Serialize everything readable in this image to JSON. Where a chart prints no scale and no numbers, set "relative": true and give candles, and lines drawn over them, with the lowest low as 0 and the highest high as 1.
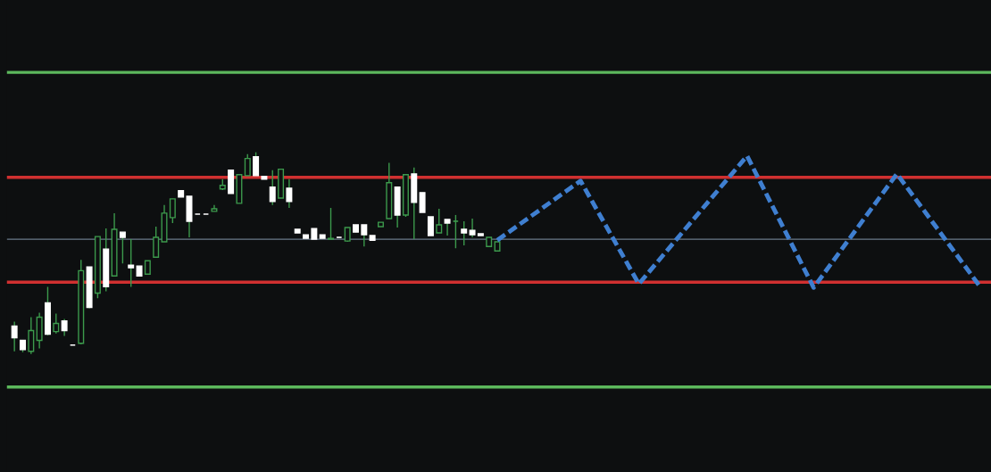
{
  "chart_data": {
    "type": "candlestick",
    "relative": true,
    "color": "#3c9a4c",
    "colors": [
      "#ffffff",
      "#ffffff",
      "#3c9a4c",
      "#3c9a4c",
      "#ffffff",
      "#3c9a4c",
      "#ffffff",
      "#ffffff",
      "#3c9a4c",
      "#ffffff",
      "#3c9a4c",
      "#ffffff",
      "#3c9a4c",
      "#ffffff",
      "#ffffff",
      "#ffffff",
      "#3c9a4c",
      "#3c9a4c",
      "#3c9a4c",
      "#3c9a4c",
      "#ffffff",
      "#ffffff",
      "#ffffff",
      "#ffffff",
      "#3c9a4c",
      "#3c9a4c",
      "#ffffff",
      "#3c9a4c",
      "#3c9a4c",
      "#ffffff",
      "#ffffff",
      "#ffffff",
      "#3c9a4c",
      "#ffffff",
      "#ffffff",
      "#ffffff",
      "#ffffff",
      "#ffffff",
      "#3c9a4c",
      "#ffffff",
      "#3c9a4c",
      "#ffffff",
      "#ffffff",
      "#ffffff",
      "#3c9a4c",
      "#3c9a4c",
      "#ffffff",
      "#3c9a4c",
      "#ffffff",
      "#ffffff",
      "#ffffff",
      "#3c9a4c",
      "#ffffff",
      "#3c9a4c",
      "#ffffff",
      "#ffffff",
      "#ffffff",
      "#3c9a4c",
      "#3c9a4c",
      null,
      null,
      null,
      null,
      null,
      null,
      null,
      null,
      null,
      null,
      null,
      null,
      null,
      null,
      null,
      null,
      null,
      null,
      null,
      null,
      null,
      null,
      null,
      null,
      null,
      null,
      null,
      null,
      null,
      null,
      null,
      null,
      null,
      null,
      null,
      null,
      null,
      null,
      null,
      null,
      null,
      null,
      null,
      null,
      null,
      null,
      null,
      null,
      null,
      null,
      null,
      null,
      null,
      null,
      null,
      null,
      null,
      null,
      null
    ],
    "categories": [
      null,
      null,
      null,
      null,
      null,
      null,
      null,
      null,
      null,
      null,
      null,
      null,
      null,
      null,
      null,
      null,
      null,
      null,
      null,
      null,
      null,
      null,
      null,
      null,
      null,
      null,
      null,
      null,
      null,
      null,
      null,
      null,
      null,
      null,
      null,
      null,
      null,
      null,
      null,
      null,
      null,
      null,
      null,
      null,
      null,
      null,
      null,
      null,
      null,
      null,
      null,
      null,
      null,
      null,
      null,
      null,
      null,
      null,
      null,
      null,
      null,
      null,
      null,
      null,
      null,
      null,
      null,
      null,
      null,
      null,
      null,
      null,
      null,
      null,
      null,
      null,
      null,
      null,
      null,
      null,
      null,
      null,
      null,
      null,
      null,
      null,
      null,
      null,
      null,
      null,
      null,
      null,
      null,
      null,
      null,
      null,
      null,
      null,
      null,
      null,
      null,
      null,
      null,
      null,
      null,
      null,
      null,
      null,
      null,
      null,
      null,
      null,
      null,
      null,
      null,
      null,
      null,
      null
    ],
    "ohlc": [
      [
        0.138,
        0.16,
        0.013,
        0.08
      ],
      [
        0.067,
        0.067,
        0.009,
        0.022
      ],
      [
        0.013,
        0.182,
        0.0,
        0.116
      ],
      [
        0.067,
        0.204,
        0.027,
        0.182
      ],
      [
        0.253,
        0.333,
        0.093,
        0.098
      ],
      [
        0.111,
        0.2,
        0.102,
        0.151
      ],
      [
        0.164,
        0.173,
        0.089,
        0.116
      ],
      [
        0.044,
        0.044,
        0.044,
        0.044
      ],
      [
        0.053,
        0.467,
        0.049,
        0.413
      ],
      [
        0.431,
        0.431,
        0.227,
        0.231
      ],
      [
        0.302,
        0.582,
        0.276,
        0.582
      ],
      [
        0.52,
        0.622,
        0.311,
        0.333
      ],
      [
        0.387,
        0.698,
        0.387,
        0.618
      ],
      [
        0.604,
        0.604,
        0.449,
        0.578
      ],
      [
        0.44,
        0.569,
        0.333,
        0.427
      ],
      [
        0.436,
        0.436,
        0.387,
        0.387
      ],
      [
        0.396,
        0.462,
        0.396,
        0.462
      ],
      [
        0.48,
        0.631,
        0.48,
        0.578
      ],
      [
        0.556,
        0.738,
        0.556,
        0.698
      ],
      [
        0.676,
        0.769,
        0.649,
        0.769
      ],
      [
        0.809,
        0.809,
        0.778,
        0.778
      ],
      [
        0.782,
        0.782,
        0.578,
        0.658
      ],
      [
        0.693,
        0.693,
        0.693,
        0.693
      ],
      [
        0.693,
        0.693,
        0.693,
        0.693
      ],
      [
        0.707,
        0.738,
        0.707,
        0.72
      ],
      [
        0.818,
        0.867,
        0.813,
        0.836
      ],
      [
        0.911,
        0.911,
        0.796,
        0.796
      ],
      [
        0.747,
        0.889,
        0.747,
        0.889
      ],
      [
        0.884,
        0.991,
        0.884,
        0.969
      ],
      [
        0.978,
        1.0,
        0.884,
        0.884
      ],
      [
        0.88,
        0.88,
        0.867,
        0.867
      ],
      [
        0.827,
        0.911,
        0.738,
        0.756
      ],
      [
        0.773,
        0.916,
        0.773,
        0.916
      ],
      [
        0.822,
        0.867,
        0.724,
        0.756
      ],
      [
        0.618,
        0.618,
        0.6,
        0.6
      ],
      [
        0.591,
        0.591,
        0.573,
        0.573
      ],
      [
        0.622,
        0.622,
        0.569,
        0.569
      ],
      [
        0.591,
        0.591,
        0.573,
        0.573
      ],
      [
        0.569,
        0.724,
        0.569,
        0.573
      ],
      [
        0.578,
        0.578,
        0.578,
        0.578
      ],
      [
        0.56,
        0.627,
        0.556,
        0.627
      ],
      [
        0.64,
        0.64,
        0.604,
        0.604
      ],
      [
        0.64,
        0.64,
        0.533,
        0.591
      ],
      [
        0.587,
        0.587,
        0.564,
        0.564
      ],
      [
        0.631,
        0.653,
        0.631,
        0.653
      ],
      [
        0.671,
        0.947,
        0.671,
        0.849
      ],
      [
        0.827,
        0.827,
        0.627,
        0.689
      ],
      [
        0.689,
        0.889,
        0.68,
        0.889
      ],
      [
        0.893,
        0.924,
        0.569,
        0.751
      ],
      [
        0.8,
        0.8,
        0.702,
        0.702
      ],
      [
        0.68,
        0.68,
        0.587,
        0.587
      ],
      [
        0.6,
        0.72,
        0.6,
        0.64
      ],
      [
        0.667,
        0.667,
        0.587,
        0.649
      ],
      [
        0.658,
        0.689,
        0.524,
        0.658
      ],
      [
        0.618,
        0.658,
        0.538,
        0.6
      ],
      [
        0.613,
        0.671,
        0.578,
        0.591
      ],
      [
        0.596,
        0.596,
        0.587,
        0.587
      ],
      [
        0.533,
        0.578,
        0.533,
        0.578
      ],
      [
        0.511,
        0.556,
        0.511,
        0.556
      ],
      null,
      null,
      null,
      null,
      null,
      null,
      null,
      null,
      null,
      null,
      null,
      null,
      null,
      null,
      null,
      null,
      null,
      null,
      null,
      null,
      null,
      null,
      null,
      null,
      null,
      null,
      null,
      null,
      null,
      null,
      null,
      null,
      null,
      null,
      null,
      null,
      null,
      null,
      null,
      null,
      null,
      null,
      null,
      null,
      null,
      null,
      null,
      null,
      null,
      null,
      null,
      null,
      null,
      null,
      null,
      null,
      null,
      null,
      null
    ],
    "series": [
      {
        "type": "line",
        "color": "#3f7fd0",
        "line_style": "dashed",
        "marker": "none",
        "values": [
          null,
          null,
          null,
          null,
          null,
          null,
          null,
          null,
          null,
          null,
          null,
          null,
          null,
          null,
          null,
          null,
          null,
          null,
          null,
          null,
          null,
          null,
          null,
          null,
          null,
          null,
          null,
          null,
          null,
          null,
          null,
          null,
          null,
          null,
          null,
          null,
          null,
          null,
          null,
          null,
          null,
          null,
          null,
          null,
          null,
          null,
          null,
          null,
          null,
          null,
          null,
          null,
          null,
          null,
          null,
          null,
          null,
          null,
          0.564,
          null,
          null,
          null,
          null,
          null,
          null,
          null,
          null,
          null,
          0.858,
          null,
          null,
          null,
          null,
          null,
          null,
          0.347,
          null,
          null,
          null,
          null,
          null,
          null,
          null,
          null,
          null,
          null,
          null,
          null,
          0.982,
          null,
          null,
          null,
          null,
          null,
          null,
          null,
          0.329,
          null,
          null,
          null,
          null,
          null,
          null,
          null,
          null,
          null,
          0.893,
          null,
          null,
          null,
          null,
          null,
          null,
          null,
          null,
          null,
          0.333,
          null
        ]
      }
    ],
    "ref_lines": [
      {
        "axis": "y",
        "value": 1.396,
        "color": "#5cb85c"
      },
      {
        "axis": "y",
        "value": 0.876,
        "color": "#d03030"
      },
      {
        "axis": "y",
        "value": 0.569,
        "color": "#6a7a8a"
      },
      {
        "axis": "y",
        "value": 0.356,
        "color": "#d03030"
      },
      {
        "axis": "y",
        "value": -0.164,
        "color": "#5cb85c"
      }
    ]
  }
}
